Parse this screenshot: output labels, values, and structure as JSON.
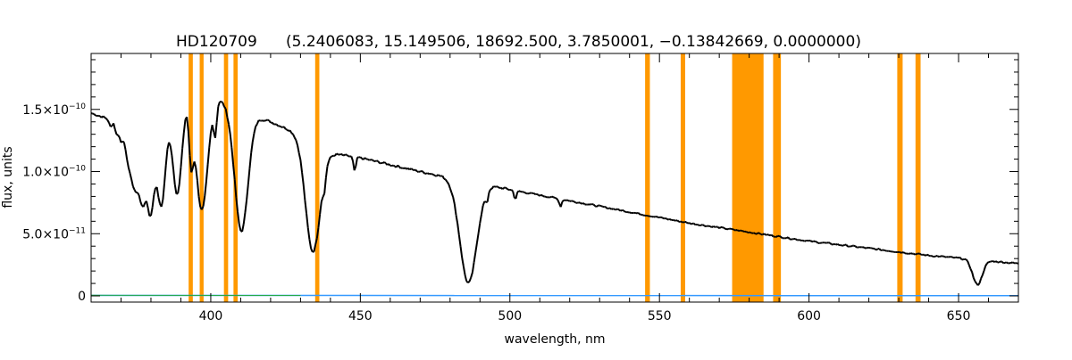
{
  "chart_data": {
    "type": "line",
    "title_object": "HD120709",
    "title_params": "(5.2406083, 15.149506, 18692.500, 3.7850001, −0.13842669, 0.0000000)",
    "xlabel": "wavelength, nm",
    "ylabel": "flux, units",
    "xlim": [
      360,
      670
    ],
    "ylim": [
      -5e-12,
      1.95e-10
    ],
    "x_ticks": [
      {
        "value": 400,
        "label": "400"
      },
      {
        "value": 450,
        "label": "450"
      },
      {
        "value": 500,
        "label": "500"
      },
      {
        "value": 550,
        "label": "550"
      },
      {
        "value": 600,
        "label": "600"
      },
      {
        "value": 650,
        "label": "650"
      }
    ],
    "y_ticks": [
      {
        "value": 0,
        "mant": "0",
        "exp": ""
      },
      {
        "value": 5e-11,
        "mant": "5.0×10",
        "exp": "−11"
      },
      {
        "value": 1e-10,
        "mant": "1.0×10",
        "exp": "−10"
      },
      {
        "value": 1.5e-10,
        "mant": "1.5×10",
        "exp": "−10"
      }
    ],
    "grid": false,
    "colors": {
      "spectrum": "#000000",
      "masked_regions": "#ff9900",
      "error": "#3399ff",
      "residual": "#22aa44"
    },
    "masked_regions_nm": [
      [
        392.6,
        394.0
      ],
      [
        396.3,
        397.6
      ],
      [
        404.4,
        405.8
      ],
      [
        407.6,
        409.0
      ],
      [
        434.9,
        436.3
      ],
      [
        545.2,
        546.8
      ],
      [
        557.1,
        558.6
      ],
      [
        574.3,
        584.8
      ],
      [
        588.0,
        590.6
      ],
      [
        629.5,
        631.3
      ],
      [
        635.6,
        637.3
      ]
    ],
    "continuum": {
      "x": [
        360,
        370,
        380,
        390,
        400,
        410,
        420,
        430,
        436,
        450,
        470,
        500,
        530,
        560,
        600,
        640,
        670
      ],
      "flux": [
        1.47e-10,
        1.39e-10,
        1.32e-10,
        1.68e-10,
        1.62e-10,
        1.49e-10,
        1.4e-10,
        1.3e-10,
        1.16e-10,
        1.11e-10,
        1e-10,
        8.55e-11,
        7.2e-11,
        5.85e-11,
        4.4e-11,
        3.25e-11,
        2.6e-11
      ]
    },
    "absorption_lines": [
      {
        "center": 366.5,
        "depth": 6e-12,
        "width": 0.5
      },
      {
        "center": 368.5,
        "depth": 1e-11,
        "width": 0.5
      },
      {
        "center": 370.0,
        "depth": 1.5e-11,
        "width": 0.6
      },
      {
        "center": 371.9,
        "depth": 2.2e-11,
        "width": 0.7
      },
      {
        "center": 373.4,
        "depth": 3.2e-11,
        "width": 0.8
      },
      {
        "center": 375.0,
        "depth": 4.2e-11,
        "width": 0.9
      },
      {
        "center": 377.1,
        "depth": 5.5e-11,
        "width": 1.0
      },
      {
        "center": 379.8,
        "depth": 6.5e-11,
        "width": 1.2
      },
      {
        "center": 383.5,
        "depth": 7.2e-11,
        "width": 1.4
      },
      {
        "center": 388.9,
        "depth": 8.2e-11,
        "width": 1.6
      },
      {
        "center": 393.4,
        "depth": 4.5e-11,
        "width": 0.7
      },
      {
        "center": 397.0,
        "depth": 9.5e-11,
        "width": 2.0
      },
      {
        "center": 401.5,
        "depth": 2.5e-11,
        "width": 0.5
      },
      {
        "center": 410.2,
        "depth": 9.7e-11,
        "width": 2.2
      },
      {
        "center": 434.0,
        "depth": 8.5e-11,
        "width": 2.4
      },
      {
        "center": 438.0,
        "depth": 1.2e-11,
        "width": 0.4
      },
      {
        "center": 448.1,
        "depth": 1.2e-11,
        "width": 0.4
      },
      {
        "center": 486.1,
        "depth": 8.2e-11,
        "width": 2.8
      },
      {
        "center": 492.3,
        "depth": 8e-12,
        "width": 0.4
      },
      {
        "center": 501.8,
        "depth": 7e-12,
        "width": 0.4
      },
      {
        "center": 516.9,
        "depth": 6e-12,
        "width": 0.4
      },
      {
        "center": 656.3,
        "depth": 2e-11,
        "width": 1.6
      }
    ],
    "error_level": 4e-13
  }
}
